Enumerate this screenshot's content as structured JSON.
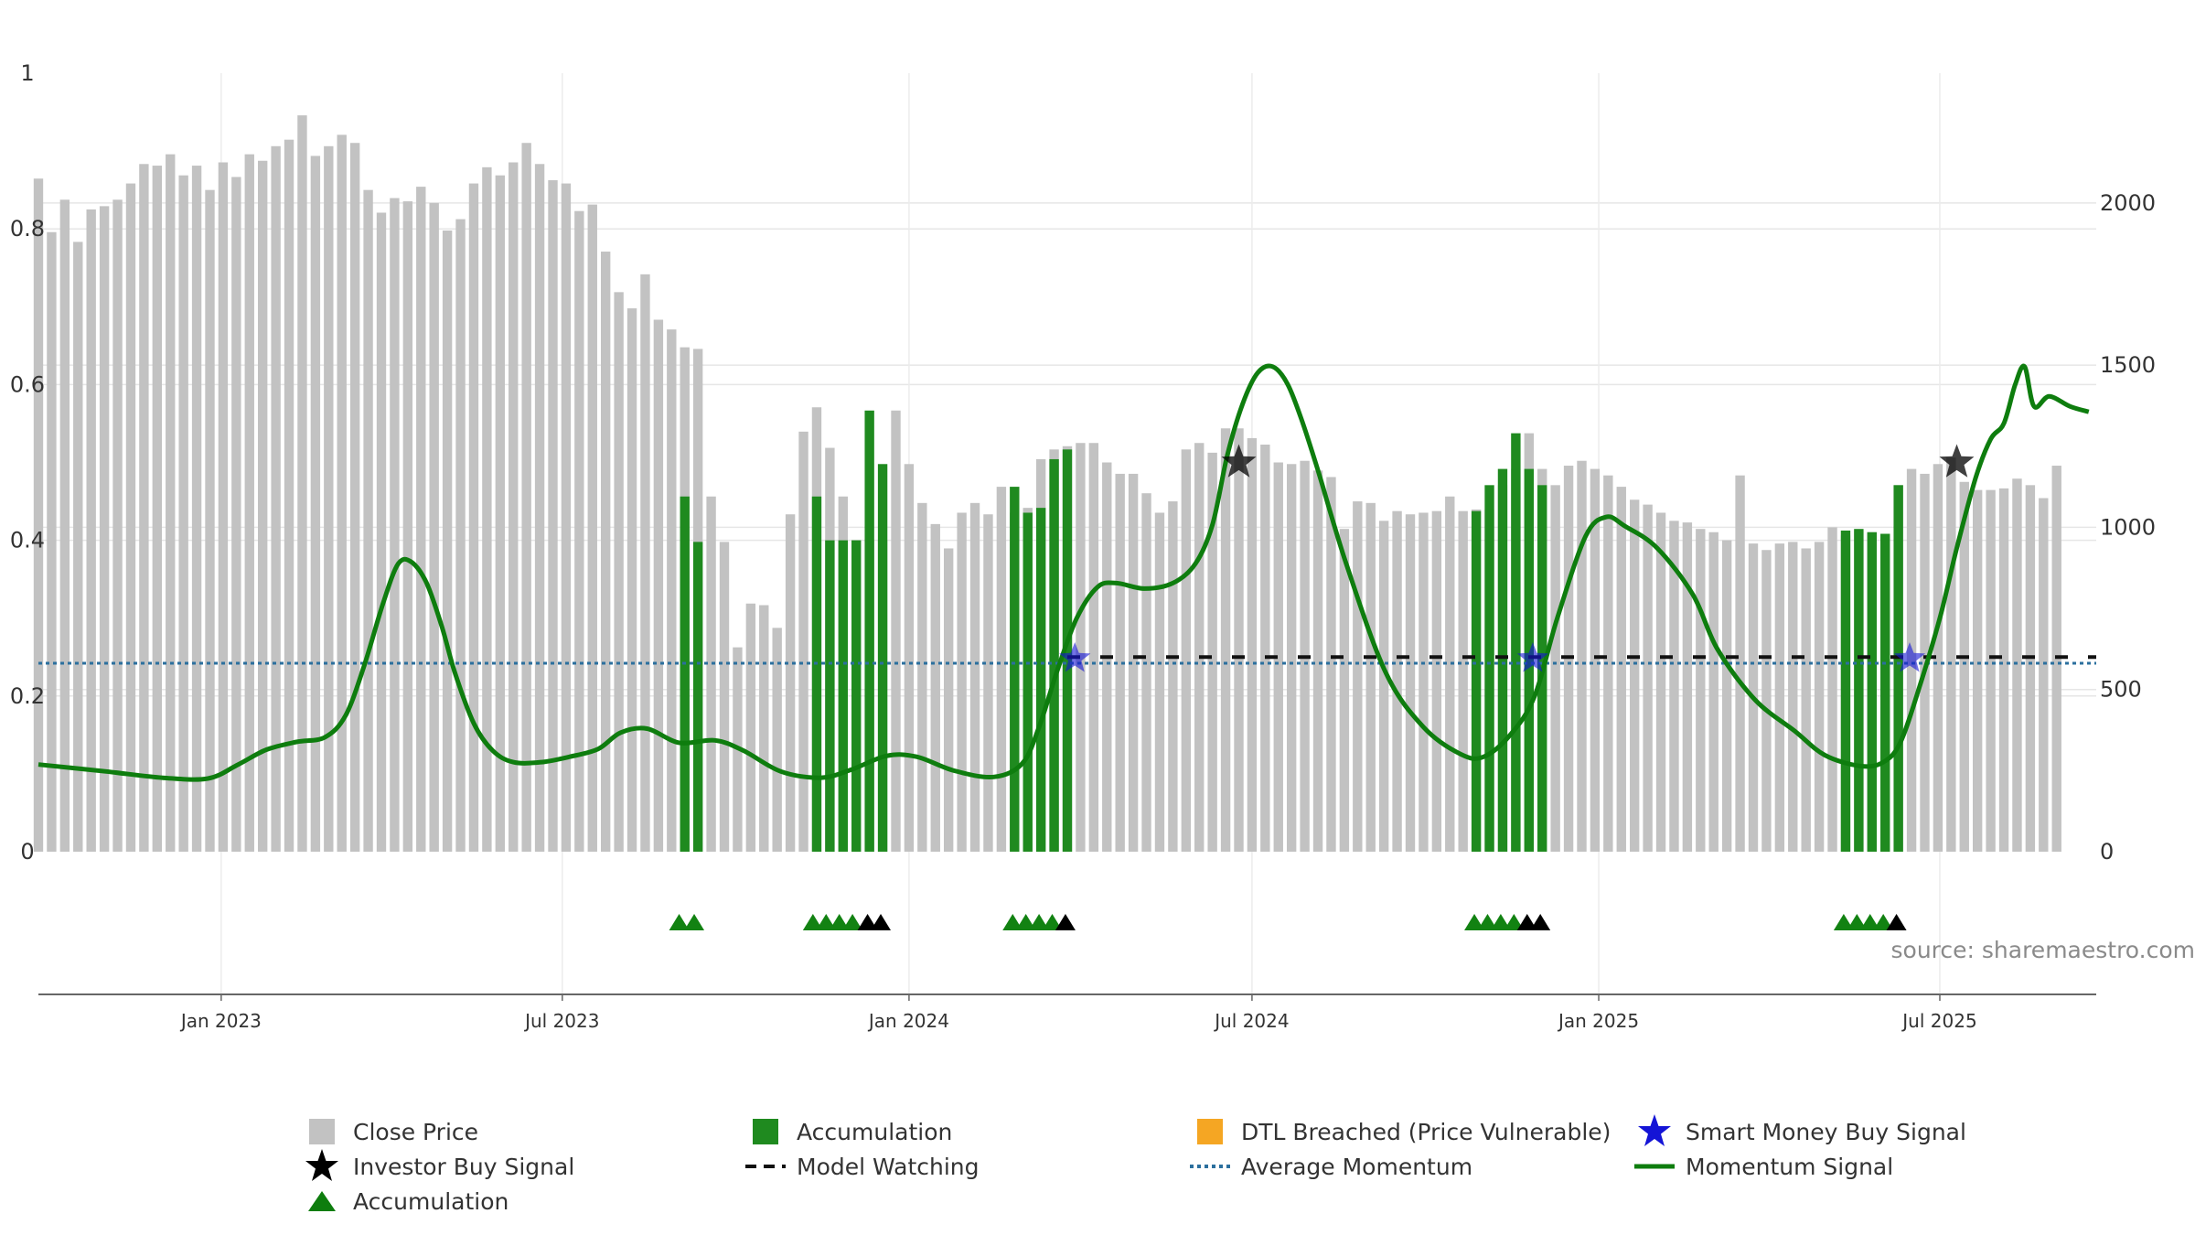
{
  "chart_data": {
    "type": "bar",
    "source_label": "source: sharemaestro.com",
    "x_start": "2022-09-26",
    "x_end": "2025-09-22",
    "x_ticks": [
      {
        "date": "2023-01-01",
        "label": "Jan 2023"
      },
      {
        "date": "2023-07-01",
        "label": "Jul 2023"
      },
      {
        "date": "2024-01-01",
        "label": "Jan 2024"
      },
      {
        "date": "2024-07-01",
        "label": "Jul 2024"
      },
      {
        "date": "2025-01-01",
        "label": "Jan 2025"
      },
      {
        "date": "2025-07-01",
        "label": "Jul 2025"
      }
    ],
    "y_left": {
      "ylim": [
        0,
        1
      ],
      "ticks": [
        {
          "v": 0,
          "label": "0"
        },
        {
          "v": 0.2,
          "label": "0.2"
        },
        {
          "v": 0.4,
          "label": "0.4"
        },
        {
          "v": 0.6,
          "label": "0.6"
        },
        {
          "v": 0.8,
          "label": "0.8"
        },
        {
          "v": 1,
          "label": "1"
        }
      ]
    },
    "y_right": {
      "ylim": [
        0,
        2400
      ],
      "ticks": [
        {
          "v": 0,
          "label": "0"
        },
        {
          "v": 500,
          "label": "500"
        },
        {
          "v": 1000,
          "label": "1000"
        },
        {
          "v": 1500,
          "label": "1500"
        },
        {
          "v": 2000,
          "label": "2000"
        }
      ]
    },
    "close_price": {
      "start_date": "2022-09-26",
      "interval_days": 7,
      "values": [
        2075,
        1910,
        2010,
        1880,
        1980,
        1990,
        2010,
        2060,
        2120,
        2115,
        2150,
        2085,
        2115,
        2040,
        2125,
        2080,
        2150,
        2130,
        2175,
        2195,
        2270,
        2145,
        2175,
        2210,
        2185,
        2040,
        1970,
        2015,
        2005,
        2050,
        2000,
        1915,
        1950,
        2060,
        2110,
        2085,
        2125,
        2185,
        2120,
        2070,
        2060,
        1975,
        1995,
        1850,
        1725,
        1675,
        1780,
        1640,
        1610,
        1555,
        1550,
        1095,
        955,
        630,
        765,
        760,
        690,
        1040,
        1295,
        1370,
        1245,
        1095,
        960,
        960,
        960,
        1360,
        1195,
        1075,
        1010,
        935,
        1045,
        1075,
        1040,
        1125,
        1045,
        1060,
        1210,
        1240,
        1250,
        1260,
        1260,
        1200,
        1165,
        1165,
        1105,
        1045,
        1080,
        1240,
        1260,
        1230,
        1305,
        1305,
        1275,
        1255,
        1200,
        1195,
        1205,
        1175,
        1155,
        995,
        1080,
        1075,
        1020,
        1050,
        1040,
        1045,
        1050,
        1095,
        1050,
        1055,
        1055,
        1130,
        1180,
        1290,
        1180,
        1130,
        1190,
        1205,
        1180,
        1160,
        1125,
        1085,
        1070,
        1045,
        1020,
        1015,
        995,
        985,
        960,
        1160,
        950,
        930,
        950,
        955,
        935,
        955,
        1000,
        975,
        990,
        985,
        980,
        1130,
        1180,
        1165,
        1195,
        1215,
        1140,
        1115,
        1115,
        1120,
        1150,
        1130,
        1090,
        1190
      ]
    },
    "accumulation_bars": [
      {
        "date": "2023-09-04",
        "value": 1095
      },
      {
        "date": "2023-09-11",
        "value": 955
      },
      {
        "date": "2023-11-13",
        "value": 1095
      },
      {
        "date": "2023-11-20",
        "value": 960
      },
      {
        "date": "2023-11-27",
        "value": 960
      },
      {
        "date": "2023-12-04",
        "value": 960
      },
      {
        "date": "2023-12-11",
        "value": 1360
      },
      {
        "date": "2023-12-18",
        "value": 1195
      },
      {
        "date": "2024-02-26",
        "value": 1125
      },
      {
        "date": "2024-03-04",
        "value": 1045
      },
      {
        "date": "2024-03-11",
        "value": 1060
      },
      {
        "date": "2024-03-18",
        "value": 1210
      },
      {
        "date": "2024-03-25",
        "value": 1240
      },
      {
        "date": "2024-10-28",
        "value": 1050
      },
      {
        "date": "2024-11-04",
        "value": 1130
      },
      {
        "date": "2024-11-11",
        "value": 1180
      },
      {
        "date": "2024-11-18",
        "value": 1290
      },
      {
        "date": "2024-11-25",
        "value": 1180
      },
      {
        "date": "2024-12-02",
        "value": 1130
      },
      {
        "date": "2025-05-12",
        "value": 990
      },
      {
        "date": "2025-05-19",
        "value": 995
      },
      {
        "date": "2025-05-26",
        "value": 985
      },
      {
        "date": "2025-06-02",
        "value": 980
      },
      {
        "date": "2025-06-09",
        "value": 1130
      }
    ],
    "momentum_signal": [
      [
        "2022-09-26",
        0.112
      ],
      [
        "2022-11-01",
        0.103
      ],
      [
        "2022-12-01",
        0.095
      ],
      [
        "2022-12-25",
        0.094
      ],
      [
        "2023-01-10",
        0.112
      ],
      [
        "2023-01-25",
        0.131
      ],
      [
        "2023-02-10",
        0.141
      ],
      [
        "2023-02-25",
        0.147
      ],
      [
        "2023-03-08",
        0.175
      ],
      [
        "2023-03-18",
        0.24
      ],
      [
        "2023-03-28",
        0.32
      ],
      [
        "2023-04-05",
        0.37
      ],
      [
        "2023-04-12",
        0.372
      ],
      [
        "2023-04-20",
        0.345
      ],
      [
        "2023-04-28",
        0.29
      ],
      [
        "2023-05-05",
        0.23
      ],
      [
        "2023-05-15",
        0.165
      ],
      [
        "2023-05-25",
        0.13
      ],
      [
        "2023-06-05",
        0.115
      ],
      [
        "2023-06-20",
        0.115
      ],
      [
        "2023-07-05",
        0.122
      ],
      [
        "2023-07-20",
        0.132
      ],
      [
        "2023-08-01",
        0.153
      ],
      [
        "2023-08-15",
        0.158
      ],
      [
        "2023-09-01",
        0.14
      ],
      [
        "2023-09-20",
        0.143
      ],
      [
        "2023-10-05",
        0.13
      ],
      [
        "2023-10-25",
        0.103
      ],
      [
        "2023-11-15",
        0.095
      ],
      [
        "2023-12-01",
        0.105
      ],
      [
        "2023-12-20",
        0.123
      ],
      [
        "2024-01-05",
        0.122
      ],
      [
        "2024-01-25",
        0.104
      ],
      [
        "2024-02-15",
        0.096
      ],
      [
        "2024-03-01",
        0.113
      ],
      [
        "2024-03-10",
        0.16
      ],
      [
        "2024-03-20",
        0.235
      ],
      [
        "2024-03-30",
        0.3
      ],
      [
        "2024-04-10",
        0.34
      ],
      [
        "2024-04-20",
        0.345
      ],
      [
        "2024-05-05",
        0.338
      ],
      [
        "2024-05-20",
        0.345
      ],
      [
        "2024-06-01",
        0.37
      ],
      [
        "2024-06-10",
        0.42
      ],
      [
        "2024-06-18",
        0.51
      ],
      [
        "2024-06-26",
        0.575
      ],
      [
        "2024-07-04",
        0.615
      ],
      [
        "2024-07-12",
        0.623
      ],
      [
        "2024-07-20",
        0.6
      ],
      [
        "2024-07-28",
        0.55
      ],
      [
        "2024-08-05",
        0.49
      ],
      [
        "2024-08-20",
        0.37
      ],
      [
        "2024-09-10",
        0.23
      ],
      [
        "2024-09-30",
        0.16
      ],
      [
        "2024-10-20",
        0.125
      ],
      [
        "2024-11-01",
        0.122
      ],
      [
        "2024-11-15",
        0.15
      ],
      [
        "2024-11-28",
        0.2
      ],
      [
        "2024-12-10",
        0.3
      ],
      [
        "2024-12-25",
        0.405
      ],
      [
        "2025-01-05",
        0.43
      ],
      [
        "2025-01-15",
        0.418
      ],
      [
        "2025-02-01",
        0.39
      ],
      [
        "2025-02-20",
        0.33
      ],
      [
        "2025-03-05",
        0.26
      ],
      [
        "2025-03-25",
        0.195
      ],
      [
        "2025-04-15",
        0.155
      ],
      [
        "2025-05-01",
        0.124
      ],
      [
        "2025-05-20",
        0.11
      ],
      [
        "2025-06-01",
        0.115
      ],
      [
        "2025-06-10",
        0.14
      ],
      [
        "2025-06-20",
        0.21
      ],
      [
        "2025-07-01",
        0.3
      ],
      [
        "2025-07-10",
        0.39
      ],
      [
        "2025-07-20",
        0.48
      ],
      [
        "2025-07-28",
        0.53
      ],
      [
        "2025-08-04",
        0.55
      ],
      [
        "2025-08-10",
        0.6
      ],
      [
        "2025-08-15",
        0.623
      ],
      [
        "2025-08-20",
        0.572
      ],
      [
        "2025-08-28",
        0.585
      ],
      [
        "2025-09-08",
        0.572
      ],
      [
        "2025-09-18",
        0.565
      ]
    ],
    "average_momentum": 0.242,
    "model_watching": [
      {
        "start": "2024-03-25",
        "end": "2025-09-22",
        "value": 0.25
      }
    ],
    "investor_buy_signals": [
      {
        "date": "2024-06-24",
        "value": 0.5
      },
      {
        "date": "2025-07-10",
        "value": 0.5
      }
    ],
    "smart_money_buy_signals": [
      {
        "date": "2024-03-29",
        "value": 0.248
      },
      {
        "date": "2024-11-27",
        "value": 0.248
      },
      {
        "date": "2025-06-15",
        "value": 0.248
      }
    ],
    "accumulation_markers_green": [
      "2023-09-01",
      "2023-09-09",
      "2023-11-11",
      "2023-11-18",
      "2023-11-25",
      "2023-12-02",
      "2024-02-25",
      "2024-03-03",
      "2024-03-10",
      "2024-03-17",
      "2024-10-27",
      "2024-11-03",
      "2024-11-10",
      "2024-11-17",
      "2025-05-11",
      "2025-05-18",
      "2025-05-25",
      "2025-06-01"
    ],
    "accumulation_markers_black": [
      "2023-12-10",
      "2023-12-17",
      "2024-03-24",
      "2024-11-24",
      "2024-12-01",
      "2025-06-08"
    ],
    "legend": [
      {
        "key": "close",
        "label": "Close Price",
        "symbol": "gray-square"
      },
      {
        "key": "accum_bar",
        "label": "Accumulation",
        "symbol": "green-square"
      },
      {
        "key": "dtl",
        "label": "DTL Breached (Price Vulnerable)",
        "symbol": "orange-square"
      },
      {
        "key": "smart",
        "label": "Smart Money Buy Signal",
        "symbol": "blue-star"
      },
      {
        "key": "investor",
        "label": "Investor Buy Signal",
        "symbol": "black-star"
      },
      {
        "key": "watching",
        "label": "Model Watching",
        "symbol": "black-dash"
      },
      {
        "key": "avg",
        "label": "Average Momentum",
        "symbol": "blue-dotted"
      },
      {
        "key": "momentum",
        "label": "Momentum Signal",
        "symbol": "green-line"
      },
      {
        "key": "accum_tri",
        "label": "Accumulation",
        "symbol": "green-triangle"
      }
    ],
    "colors": {
      "close": "#c2c2c2",
      "accumulation": "#1f8a1f",
      "dtl": "#f5a623",
      "momentum": "#0e7d0e",
      "average": "#2b6f9e",
      "smart_money": "#1414d6",
      "investor": "#000000",
      "watching": "#111111",
      "grid": "#e6e6e6",
      "axis": "#666666"
    }
  }
}
